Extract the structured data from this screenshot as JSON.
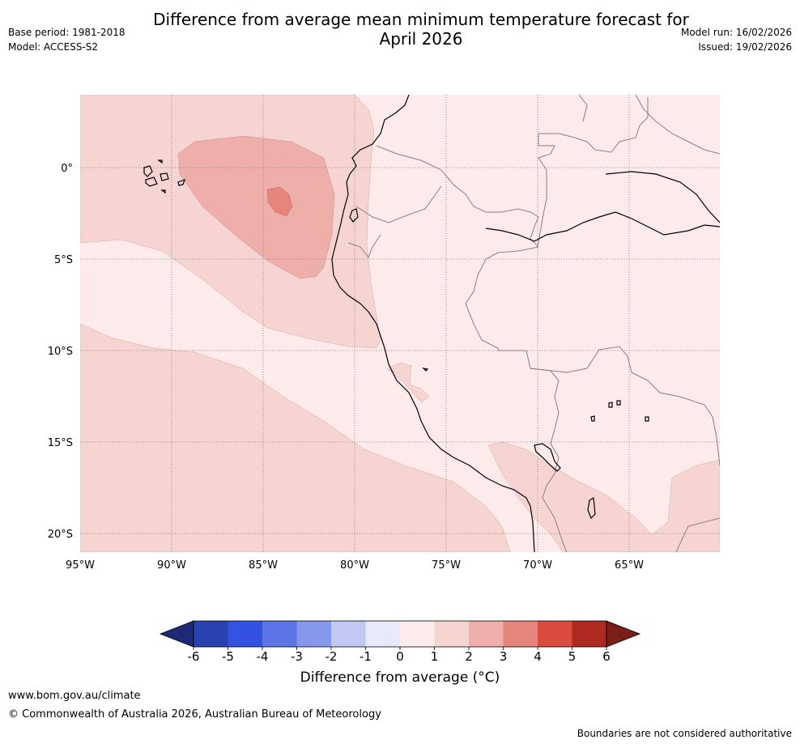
{
  "title": "Difference from average mean minimum temperature forecast for April 2026",
  "title_line1": "Difference from average mean minimum temperature forecast for",
  "title_line2": "April 2026",
  "meta_left": {
    "base_period": "Base period: 1981-2018",
    "model": "Model: ACCESS-S2"
  },
  "meta_right": {
    "model_run": "Model run: 16/02/2026",
    "issued": "Issued: 19/02/2026"
  },
  "map": {
    "lon_labels": [
      "95°W",
      "90°W",
      "85°W",
      "80°W",
      "75°W",
      "70°W",
      "65°W"
    ],
    "lat_labels": [
      "0°",
      "5°S",
      "10°S",
      "15°S",
      "20°S"
    ]
  },
  "colorbar": {
    "ticks": [
      "-6",
      "-5",
      "-4",
      "-3",
      "-2",
      "-1",
      "0",
      "1",
      "2",
      "3",
      "4",
      "5",
      "6"
    ],
    "colors": [
      "#1e2a78",
      "#2a41b0",
      "#3452e0",
      "#5b74e6",
      "#8598ec",
      "#c1c8f4",
      "#e8eafb",
      "#fcebea",
      "#f6d4d2",
      "#eeafab",
      "#e5857c",
      "#da4a3e",
      "#ae2a21",
      "#7a1e17"
    ],
    "label": "Difference from average (°C)"
  },
  "footer": {
    "url": "www.bom.gov.au/climate",
    "copyright": "© Commonwealth of Australia 2026, Australian Bureau of Meteorology",
    "disclaimer": "Boundaries are not considered authoritative"
  }
}
